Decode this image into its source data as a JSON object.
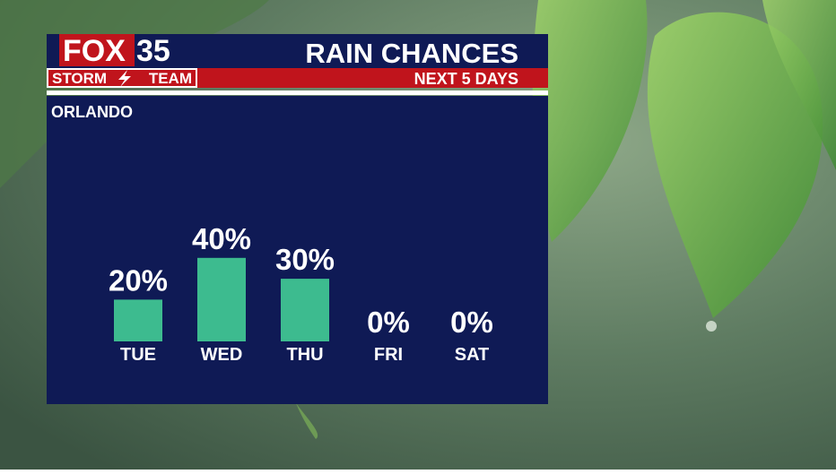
{
  "brand": {
    "name": "FOX",
    "number": "35",
    "team_left": "STORM",
    "team_right": "TEAM"
  },
  "chart_data": {
    "type": "bar",
    "title": "RAIN CHANCES",
    "subtitle": "NEXT 5 DAYS",
    "location": "ORLANDO",
    "categories": [
      "TUE",
      "WED",
      "THU",
      "FRI",
      "SAT"
    ],
    "values": [
      20,
      40,
      30,
      0,
      0
    ],
    "value_labels": [
      "20%",
      "40%",
      "30%",
      "0%",
      "0%"
    ],
    "color": "#3dbb8f"
  }
}
